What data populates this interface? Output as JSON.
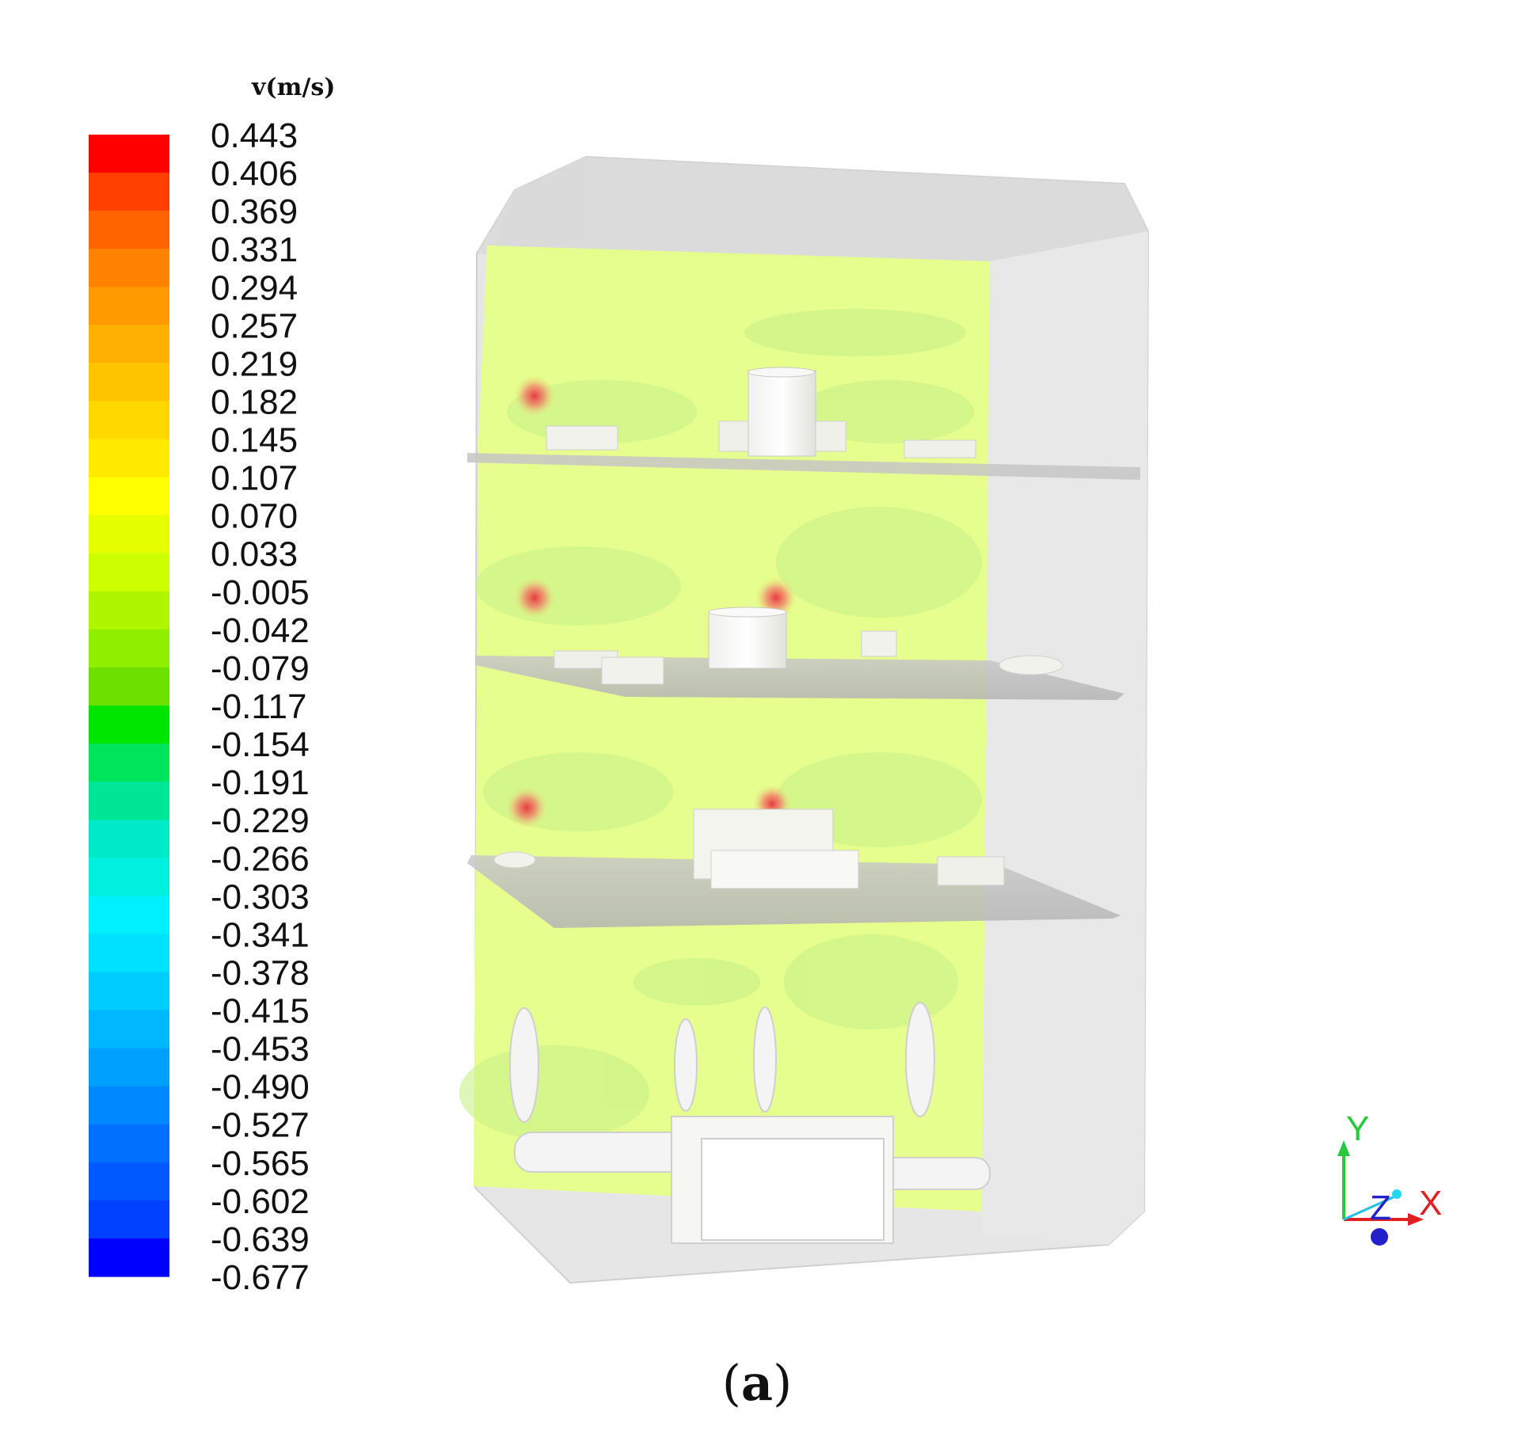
{
  "legend": {
    "title": "v(m/s)",
    "ticks": [
      "0.443",
      "0.406",
      "0.369",
      "0.331",
      "0.294",
      "0.257",
      "0.219",
      "0.182",
      "0.145",
      "0.107",
      "0.070",
      "0.033",
      "-0.005",
      "-0.042",
      "-0.079",
      "-0.117",
      "-0.154",
      "-0.191",
      "-0.229",
      "-0.266",
      "-0.303",
      "-0.341",
      "-0.378",
      "-0.415",
      "-0.453",
      "-0.490",
      "-0.527",
      "-0.565",
      "-0.602",
      "-0.639",
      "-0.677"
    ],
    "colors": [
      "#ff0000",
      "#ff4000",
      "#ff6400",
      "#ff8200",
      "#ff9a00",
      "#ffb000",
      "#ffc400",
      "#ffd800",
      "#ffea00",
      "#ffff00",
      "#e6ff00",
      "#ccff00",
      "#b0f500",
      "#90ee00",
      "#6ee000",
      "#00e600",
      "#00e45c",
      "#00e696",
      "#00eac8",
      "#00f0e0",
      "#00f0ff",
      "#00e0ff",
      "#00ccff",
      "#00b8ff",
      "#00a0ff",
      "#0088ff",
      "#0070ff",
      "#0058ff",
      "#0040ff",
      "#0000ff"
    ]
  },
  "contour": {
    "background_color": "#e6ff88",
    "hotspot_color": "#e0303a"
  },
  "axes_triad": {
    "y_label": "Y",
    "z_label": "Z",
    "x_label": "X",
    "colors": {
      "y": "#27c93f",
      "z": "#2222cc",
      "x": "#e02020"
    }
  },
  "caption": {
    "open": "(",
    "letter": "a",
    "close": ")"
  }
}
